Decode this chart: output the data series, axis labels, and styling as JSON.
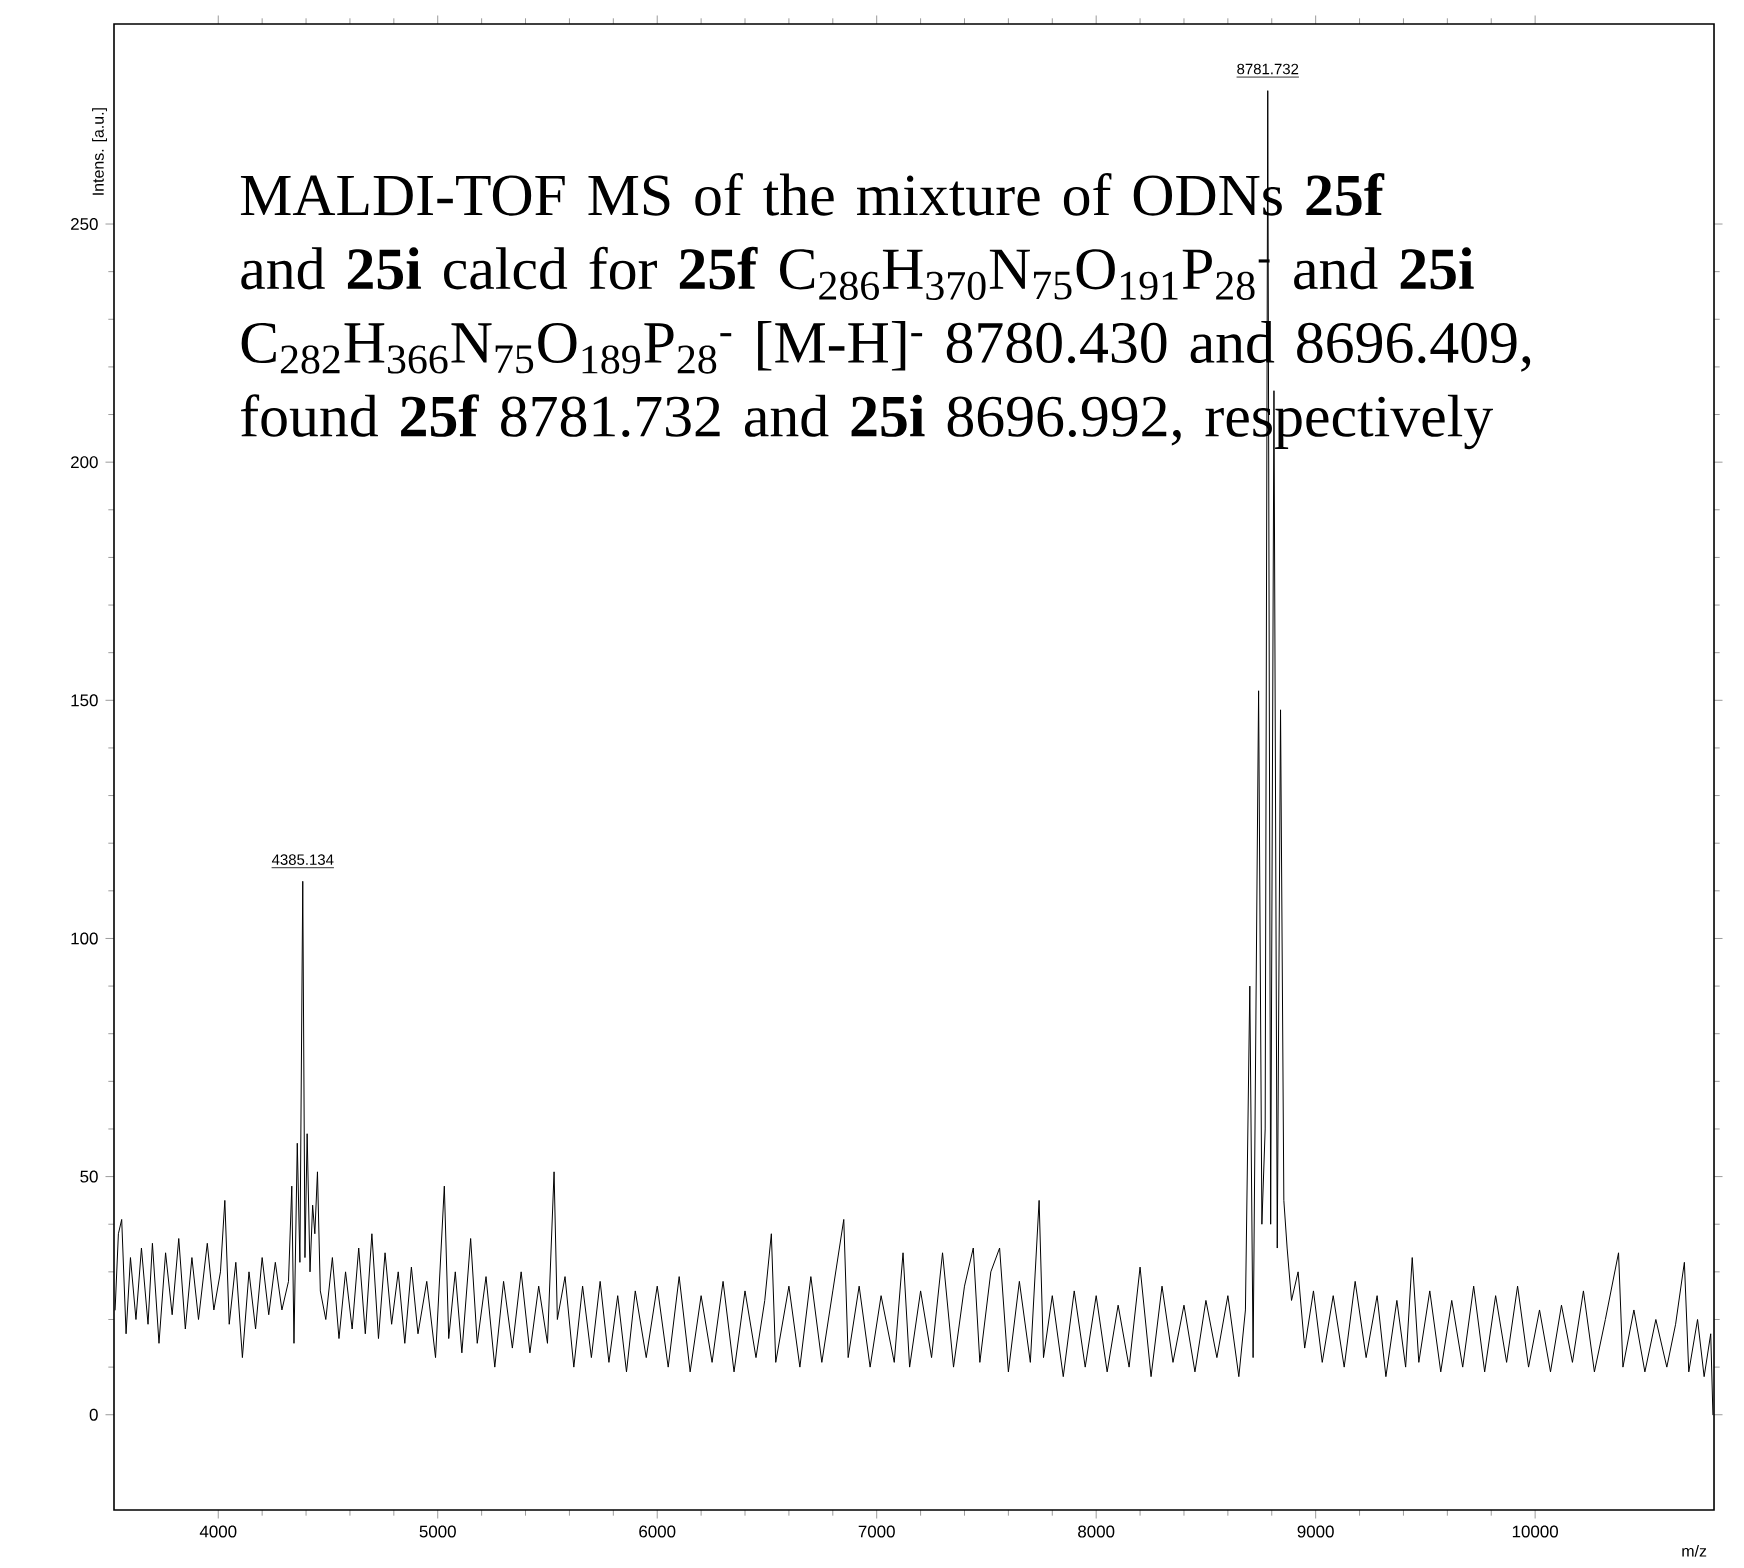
{
  "chart_data": {
    "type": "line",
    "xlabel": "m/z",
    "ylabel": "Intens. [a.u.]",
    "xlim": [
      3525,
      10815
    ],
    "ylim": [
      -20,
      292
    ],
    "xticks": [
      4000,
      5000,
      6000,
      7000,
      8000,
      9000,
      10000
    ],
    "yticks": [
      0,
      50,
      100,
      150,
      200,
      250
    ],
    "annotations": [
      "MALDI-TOF MS of the mixture of ODNs **25f** and **25i** calcd for **25f** C$_{286}$H$_{370}$N$_{75}$O$_{191}$P$_{28}$$^{-}$ and **25i** C$_{282}$H$_{366}$N$_{75}$O$_{189}$P$_{28}$$^{-}$ [M-H]$^{-}$ 8780.430 and 8696.409, found **25f** 8781.732 and **25i** 8696.992, respectively",
      {
        "text": "4385.134",
        "x": 4385.134,
        "y": 112
      },
      {
        "text": "8781.732",
        "x": 8781.732,
        "y": 278
      }
    ],
    "series": [
      {
        "color": "#000000",
        "x": [
          3530,
          3545,
          3560,
          3580,
          3600,
          3625,
          3650,
          3680,
          3700,
          3730,
          3760,
          3790,
          3820,
          3850,
          3880,
          3910,
          3950,
          3980,
          4010,
          4030,
          4050,
          4080,
          4110,
          4140,
          4170,
          4200,
          4230,
          4260,
          4290,
          4320,
          4335,
          4345,
          4360,
          4372,
          4385,
          4395,
          4405,
          4418,
          4430,
          4440,
          4452,
          4465,
          4490,
          4520,
          4550,
          4580,
          4610,
          4640,
          4670,
          4700,
          4730,
          4760,
          4790,
          4820,
          4850,
          4880,
          4910,
          4950,
          4990,
          5030,
          5050,
          5080,
          5110,
          5150,
          5180,
          5220,
          5260,
          5300,
          5340,
          5380,
          5420,
          5460,
          5500,
          5530,
          5545,
          5580,
          5620,
          5660,
          5700,
          5740,
          5780,
          5820,
          5860,
          5900,
          5950,
          6000,
          6050,
          6100,
          6150,
          6200,
          6250,
          6300,
          6350,
          6400,
          6450,
          6490,
          6520,
          6540,
          6600,
          6650,
          6700,
          6750,
          6800,
          6850,
          6870,
          6920,
          6970,
          7020,
          7080,
          7120,
          7150,
          7200,
          7250,
          7300,
          7350,
          7400,
          7440,
          7470,
          7520,
          7560,
          7600,
          7650,
          7700,
          7740,
          7760,
          7800,
          7850,
          7900,
          7950,
          8000,
          8050,
          8100,
          8150,
          8200,
          8250,
          8300,
          8350,
          8400,
          8450,
          8500,
          8550,
          8600,
          8650,
          8680,
          8700,
          8715,
          8740,
          8755,
          8770,
          8781.732,
          8795,
          8810,
          8825,
          8840,
          8855,
          8870,
          8890,
          8920,
          8950,
          8990,
          9030,
          9080,
          9130,
          9180,
          9230,
          9280,
          9320,
          9370,
          9410,
          9440,
          9470,
          9520,
          9570,
          9620,
          9670,
          9720,
          9770,
          9820,
          9870,
          9920,
          9970,
          10020,
          10070,
          10120,
          10170,
          10220,
          10270,
          10320,
          10380,
          10400,
          10450,
          10500,
          10550,
          10600,
          10640,
          10680,
          10700,
          10740,
          10770,
          10800,
          10810
        ],
        "values": [
          22,
          38,
          41,
          17,
          33,
          20,
          35,
          19,
          36,
          15,
          34,
          21,
          37,
          18,
          33,
          20,
          36,
          22,
          30,
          45,
          19,
          32,
          12,
          30,
          18,
          33,
          21,
          32,
          22,
          28,
          48,
          15,
          57,
          32,
          112,
          33,
          59,
          30,
          44,
          38,
          51,
          26,
          20,
          33,
          16,
          30,
          18,
          35,
          17,
          38,
          16,
          34,
          19,
          30,
          15,
          31,
          17,
          28,
          12,
          48,
          16,
          30,
          13,
          37,
          15,
          29,
          10,
          28,
          14,
          30,
          13,
          27,
          15,
          51,
          20,
          29,
          10,
          27,
          12,
          28,
          11,
          25,
          9,
          26,
          12,
          27,
          10,
          29,
          9,
          25,
          11,
          28,
          9,
          26,
          12,
          24,
          38,
          11,
          27,
          10,
          29,
          11,
          26,
          41,
          12,
          27,
          10,
          25,
          11,
          34,
          10,
          26,
          12,
          34,
          10,
          27,
          35,
          11,
          30,
          35,
          9,
          28,
          11,
          45,
          12,
          25,
          8,
          26,
          10,
          25,
          9,
          23,
          10,
          31,
          8,
          27,
          11,
          23,
          9,
          24,
          12,
          25,
          8,
          22,
          90,
          12,
          152,
          40,
          60,
          278,
          40,
          215,
          35,
          148,
          45,
          35,
          24,
          30,
          14,
          26,
          11,
          25,
          10,
          28,
          12,
          25,
          8,
          24,
          10,
          33,
          11,
          26,
          9,
          24,
          10,
          27,
          9,
          25,
          11,
          27,
          10,
          22,
          9,
          23,
          11,
          26,
          9,
          20,
          34,
          10,
          22,
          9,
          20,
          10,
          19,
          32,
          9,
          20,
          8,
          17,
          0
        ]
      }
    ]
  }
}
